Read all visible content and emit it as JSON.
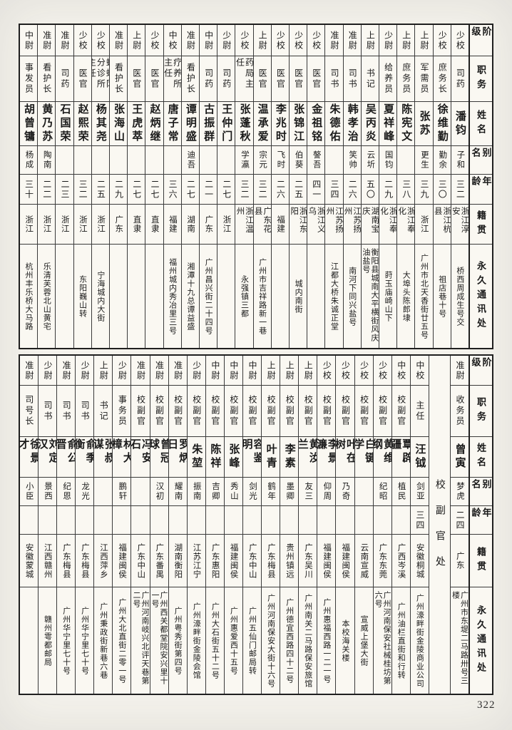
{
  "page": {
    "number": "322"
  },
  "header_labels": [
    "阶级",
    "职务",
    "姓名",
    "别名",
    "年龄",
    "籍贯",
    "永久通讯处"
  ],
  "table_top": {
    "columns": [
      {
        "rank": "少校",
        "duty": "司药",
        "name": "潘钧",
        "alias": "子和",
        "age": "三二",
        "origin": "浙江淳安",
        "address": "桥西周成生号交"
      },
      {
        "rank": "少校",
        "duty": "庶务长",
        "name": "徐维勤",
        "alias": "勤余",
        "age": "三〇",
        "origin": "浙江杭县",
        "address": "祖店巷十号"
      },
      {
        "rank": "上尉",
        "duty": "军需员",
        "name": "张苏",
        "alias": "更生",
        "age": "三九",
        "origin": "浙江",
        "address": "广州市北天香街廿五号"
      },
      {
        "rank": "上尉",
        "duty": "庶务员",
        "name": "陈宪文",
        "alias": "",
        "age": "三八",
        "origin": "浙江奉化",
        "address": "大埠头陈郎埭"
      },
      {
        "rank": "少尉",
        "duty": "给养员",
        "name": "夏祥峰",
        "alias": "国钧",
        "age": "二九",
        "origin": "浙江奉化",
        "address": "莳玉庙崎山下"
      },
      {
        "rank": "上尉",
        "duty": "书记",
        "name": "吴丙炎",
        "alias": "云圻",
        "age": "五〇",
        "origin": "湖南宝庆",
        "address": "衡阳县城南大平横街风庆油盐号"
      },
      {
        "rank": "准尉",
        "duty": "司书",
        "name": "韩孝治",
        "alias": "笑帅",
        "age": "二六",
        "origin": "江苏扬州",
        "address": "南河下同兴盐号"
      },
      {
        "rank": "准尉",
        "duty": "司书",
        "name": "朱德佑",
        "alias": "",
        "age": "三四",
        "origin": "江苏扬州",
        "address": "江都大桥朱诚正堂"
      },
      {
        "rank": "少校",
        "duty": "医官",
        "name": "金祖铭",
        "alias": "謷吾",
        "age": "四一",
        "origin": "浙江义乌",
        "address": ""
      },
      {
        "rank": "少校",
        "duty": "医官",
        "name": "张锦江",
        "alias": "伯葵",
        "age": "二五",
        "origin": "浙江东阳",
        "address": "城内南街"
      },
      {
        "rank": "少校",
        "duty": "医官",
        "name": "李兆时",
        "alias": "飞时",
        "age": "二六",
        "origin": "福建",
        "address": ""
      },
      {
        "rank": "上尉",
        "duty": "医官",
        "name": "温承爱",
        "alias": "宗元",
        "age": "三二",
        "origin": "广东花县",
        "address": "广州市吉祥路新一巷"
      },
      {
        "rank": "少校",
        "duty": "药局主任",
        "name": "张蓬秋",
        "alias": "学瀛",
        "age": "三二",
        "origin": "浙江温州",
        "address": "永强镇三都"
      },
      {
        "rank": "少尉",
        "duty": "司药",
        "name": "王仲门",
        "alias": "",
        "age": "二七",
        "origin": "浙江",
        "address": ""
      },
      {
        "rank": "中尉",
        "duty": "司药",
        "name": "古振群",
        "alias": "",
        "age": "二一",
        "origin": "广东",
        "address": "广州昌兴街二十四号"
      },
      {
        "rank": "准尉",
        "duty": "看护长",
        "name": "谭明盛",
        "alias": "迪吾",
        "age": "二七",
        "origin": "湖南",
        "address": "湘潭十九总谭益盛"
      },
      {
        "rank": "中校",
        "duty": "疗养所主任",
        "name": "唐子常",
        "alias": "",
        "age": "三六",
        "origin": "福建",
        "address": "福州城内秀冶里三号"
      },
      {
        "rank": "少校",
        "duty": "医官",
        "name": "赵炳继",
        "alias": "",
        "age": "二七",
        "origin": "直隶",
        "address": ""
      },
      {
        "rank": "上尉",
        "duty": "医官",
        "name": "王虎萃",
        "alias": "",
        "age": "二七",
        "origin": "直隶",
        "address": ""
      },
      {
        "rank": "准尉",
        "duty": "看护长",
        "name": "张海山",
        "alias": "",
        "age": "二九",
        "origin": "广东",
        "address": ""
      },
      {
        "rank": "少校",
        "duty": "蝴蝶冈分诊所主任",
        "name": "杨其尧",
        "alias": "",
        "age": "二五",
        "origin": "浙江",
        "address": "宁海城内大街"
      },
      {
        "rank": "少校",
        "duty": "医官",
        "name": "赵熙荣",
        "alias": "",
        "age": "三二",
        "origin": "浙江",
        "address": "东阳巍山转"
      },
      {
        "rank": "准尉",
        "duty": "司药",
        "name": "石国荣",
        "alias": "",
        "age": "二三",
        "origin": "浙江",
        "address": ""
      },
      {
        "rank": "准尉",
        "duty": "看护长",
        "name": "黄乃苏",
        "alias": "陶南",
        "age": "二二",
        "origin": "浙江",
        "address": "乐清芙蓉北山黄宅"
      },
      {
        "rank": "中尉",
        "duty": "事发员",
        "name": "胡曾镛",
        "alias": "杨成",
        "age": "三十",
        "origin": "浙江",
        "address": "杭州丰乐桥大马路"
      }
    ]
  },
  "table_bottom": {
    "columns": [
      {
        "rank": "准尉",
        "duty": "收务员",
        "name": "曾寅",
        "alias": "梦虎",
        "age": "二四",
        "origin": "广东",
        "address": "广州市东堤二马路卅号三楼"
      },
      {
        "section": "校副官处"
      },
      {
        "rank": "中校",
        "duty": "主任",
        "name": "汪钺",
        "alias": "剑亚",
        "age": "三四",
        "origin": "安徽桐城",
        "address": "广州濠畔街金陵商业公司"
      },
      {
        "rank": "中校",
        "duty": "校副官",
        "name": "覃辟疆",
        "alias": "植民",
        "age": "",
        "origin": "广西岑溪",
        "address": "广州油栏直街和行转"
      },
      {
        "rank": "少校",
        "duty": "校副官",
        "name": "黄维纲",
        "alias": "纪昭",
        "age": "",
        "origin": "广东东莞",
        "address": "广州河南保安社械桂坊第六号"
      },
      {
        "rank": "少校",
        "duty": "校副官",
        "name": "白键学",
        "alias": "",
        "age": "",
        "origin": "云南宣威",
        "address": "宣威上堡大街"
      },
      {
        "rank": "少校",
        "duty": "校副官",
        "name": "叶在树",
        "alias": "乃奇",
        "age": "",
        "origin": "福建闽侯",
        "address": "本校海关楼"
      },
      {
        "rank": "少校",
        "duty": "校副官",
        "name": "李景濂",
        "alias": "仰周",
        "age": "",
        "origin": "福建闽侯",
        "address": "广州惠福西路一二一号"
      },
      {
        "rank": "上尉",
        "duty": "校副官",
        "name": "黄汝兰",
        "alias": "友三",
        "age": "",
        "origin": "广东吴川",
        "address": "广州南关二马路保安旅馆"
      },
      {
        "rank": "上尉",
        "duty": "校副官",
        "name": "李素",
        "alias": "墨卿",
        "age": "",
        "origin": "贵州镇远",
        "address": "广州德宜西路四十二号"
      },
      {
        "rank": "上尉",
        "duty": "校副官",
        "name": "叶青",
        "alias": "鹤年",
        "age": "",
        "origin": "广东梅县",
        "address": "广州河南保安大街十六号"
      },
      {
        "rank": "中尉",
        "duty": "校副官",
        "name": "容鉴明",
        "alias": "剑光",
        "age": "",
        "origin": "广东中山",
        "address": "广州五仙门邮局转"
      },
      {
        "rank": "中尉",
        "duty": "校副官",
        "name": "张峰",
        "alias": "秀山",
        "age": "",
        "origin": "福建闽侯",
        "address": "广州惠爱西十五号"
      },
      {
        "rank": "中尉",
        "duty": "校副官",
        "name": "陈祥",
        "alias": "吉卿",
        "age": "",
        "origin": "广东惠阳",
        "address": "广州大石街五十二号"
      },
      {
        "rank": "少尉",
        "duty": "校副官",
        "name": "朱堃",
        "alias": "振南",
        "age": "",
        "origin": "江苏江宁",
        "address": "广州濠畔街金陵会馆"
      },
      {
        "rank": "准尉",
        "duty": "校副官",
        "name": "罗炳日",
        "alias": "耀南",
        "age": "",
        "origin": "湖南衡阳",
        "address": "广州粤秀街第四号"
      },
      {
        "rank": "准尉",
        "duty": "校副官",
        "name": "曾冠球",
        "alias": "汉初",
        "age": "",
        "origin": "广东番禺",
        "address": "广州西关都堂院安兴里十一号"
      },
      {
        "rank": "准尉",
        "duty": "校副官",
        "name": "冯安石",
        "alias": "",
        "age": "",
        "origin": "广东中山",
        "address": "广州河南岐兴北评天巷第二号"
      },
      {
        "rank": "少尉",
        "duty": "事务员",
        "name": "林大樟",
        "alias": "鹏轩",
        "age": "",
        "origin": "福建闽侯",
        "address": "广州大北直街二零一号"
      },
      {
        "rank": "上尉",
        "duty": "书记",
        "name": "张叔谋",
        "alias": "",
        "age": "",
        "origin": "江西萍乡",
        "address": "广州秉政街新巷六巷"
      },
      {
        "rank": "少尉",
        "duty": "司书",
        "name": "俞季衡",
        "alias": "龙光",
        "age": "",
        "origin": "广东梅县",
        "address": "广州华宁里七十号"
      },
      {
        "rank": "准尉",
        "duty": "司书",
        "name": "俞公晋",
        "alias": "纪恩",
        "age": "",
        "origin": "广东梅县",
        "address": "广州华宁里七十号"
      },
      {
        "rank": "少尉",
        "duty": "司书",
        "name": "刘定汉",
        "alias": "景西",
        "age": "",
        "origin": "江西赣州",
        "address": "赣州雩都邮局"
      },
      {
        "rank": "准尉",
        "duty": "司号长",
        "name": "徐景才",
        "alias": "小臣",
        "age": "",
        "origin": "安徽蒙城",
        "address": ""
      }
    ]
  }
}
